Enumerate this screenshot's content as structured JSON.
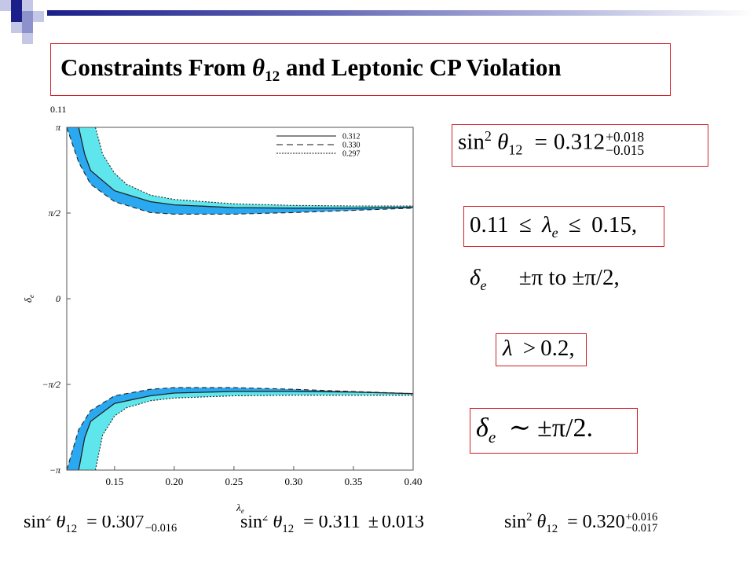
{
  "title": {
    "prefix": "Constraints From ",
    "theta": "θ",
    "theta_sub": "12",
    "suffix": " and Leptonic CP Violation"
  },
  "plot_corner_label": "0.11",
  "chart_data": {
    "type": "area",
    "xlabel": "λ",
    "xlabel_sub": "e",
    "ylabel": "δ",
    "ylabel_sub": "e",
    "xlim": [
      0.11,
      0.4
    ],
    "ylim": [
      -3.14159,
      3.14159
    ],
    "x_ticks": [
      0.15,
      0.2,
      0.25,
      0.3,
      0.35,
      0.4
    ],
    "x_tick_labels": [
      "0.15",
      "0.20",
      "0.25",
      "0.30",
      "0.35",
      "0.40"
    ],
    "y_ticks": [
      3.14159,
      1.5708,
      0,
      -1.5708,
      -3.14159
    ],
    "y_tick_labels": [
      "π",
      "π/2",
      "0",
      "−π/2",
      "−π"
    ],
    "vline_x": 0.11,
    "grid": false,
    "legend_position": "top-right",
    "legend": [
      {
        "name": "0.312",
        "style": "solid"
      },
      {
        "name": "0.330",
        "style": "dashed"
      },
      {
        "name": "0.297",
        "style": "dotted"
      }
    ],
    "fill_colors": {
      "outer": "#2aa8f0",
      "inner": "#5fe6ec"
    },
    "series": [
      {
        "name": "0.330",
        "style": "dashed",
        "upper_x": [
          0.11,
          0.12,
          0.13,
          0.15,
          0.18,
          0.2,
          0.25,
          0.3,
          0.35,
          0.4
        ],
        "upper_y": [
          3.14,
          2.5,
          2.1,
          1.78,
          1.58,
          1.55,
          1.55,
          1.58,
          1.62,
          1.66
        ],
        "lower_x": [
          0.11,
          0.12,
          0.13,
          0.15,
          0.18,
          0.2,
          0.25,
          0.3,
          0.35,
          0.4
        ],
        "lower_y": [
          -3.14,
          -2.4,
          -2.05,
          -1.78,
          -1.66,
          -1.63,
          -1.63,
          -1.66,
          -1.7,
          -1.74
        ]
      },
      {
        "name": "0.312",
        "style": "solid",
        "upper_x": [
          0.12,
          0.125,
          0.13,
          0.15,
          0.18,
          0.2,
          0.25,
          0.3,
          0.35,
          0.4
        ],
        "upper_y": [
          3.14,
          2.65,
          2.35,
          1.98,
          1.78,
          1.72,
          1.67,
          1.66,
          1.66,
          1.68
        ],
        "lower_x": [
          0.12,
          0.125,
          0.13,
          0.15,
          0.18,
          0.2,
          0.25,
          0.3,
          0.35,
          0.4
        ],
        "lower_y": [
          -3.14,
          -2.55,
          -2.25,
          -1.92,
          -1.78,
          -1.73,
          -1.7,
          -1.7,
          -1.71,
          -1.74
        ]
      },
      {
        "name": "0.297",
        "style": "dotted",
        "upper_x": [
          0.134,
          0.14,
          0.15,
          0.16,
          0.18,
          0.2,
          0.25,
          0.3,
          0.35,
          0.4
        ],
        "upper_y": [
          3.14,
          2.65,
          2.3,
          2.1,
          1.9,
          1.82,
          1.74,
          1.71,
          1.7,
          1.7
        ],
        "lower_x": [
          0.134,
          0.14,
          0.15,
          0.16,
          0.18,
          0.2,
          0.25,
          0.3,
          0.35,
          0.4
        ],
        "lower_y": [
          -3.14,
          -2.5,
          -2.15,
          -2.0,
          -1.87,
          -1.82,
          -1.78,
          -1.77,
          -1.77,
          -1.77
        ]
      }
    ]
  },
  "eq1": {
    "lhs": "sin",
    "sup": "2",
    "theta": "θ",
    "sub": "12",
    "eq": "=",
    "value": "0.312",
    "plus": "+0.018",
    "minus": "−0.015"
  },
  "eq2": {
    "left": "0.11",
    "le1": "≤",
    "lambda": "λ",
    "sub": "e",
    "le2": "≤",
    "right": "0.15",
    "trail": ","
  },
  "eq3": {
    "delta": "δ",
    "sub": "e",
    "text": "±π to ±π/2,"
  },
  "eq4": {
    "lambda": "λ",
    "gt": ">",
    "value": "0.2",
    "trail": ","
  },
  "eq5": {
    "delta": "δ",
    "sub": "e",
    "sim": "∼",
    "value": "±π/2."
  },
  "bottom": {
    "b1": {
      "lhs": "sin",
      "sup": "2",
      "theta": "θ",
      "sub": "12",
      "eq": "=",
      "value": "0.307",
      "minus": "−0.016"
    },
    "b2": {
      "lhs": "sin",
      "sup": "2",
      "theta": "θ",
      "sub": "12",
      "eq": "=",
      "value": "0.311",
      "pm": "±",
      "err": "0.013"
    },
    "b3": {
      "lhs": "sin",
      "sup": "2",
      "theta": "θ",
      "sub": "12",
      "eq": "=",
      "value": "0.320",
      "plus": "+0.016",
      "minus": "−0.017"
    }
  }
}
